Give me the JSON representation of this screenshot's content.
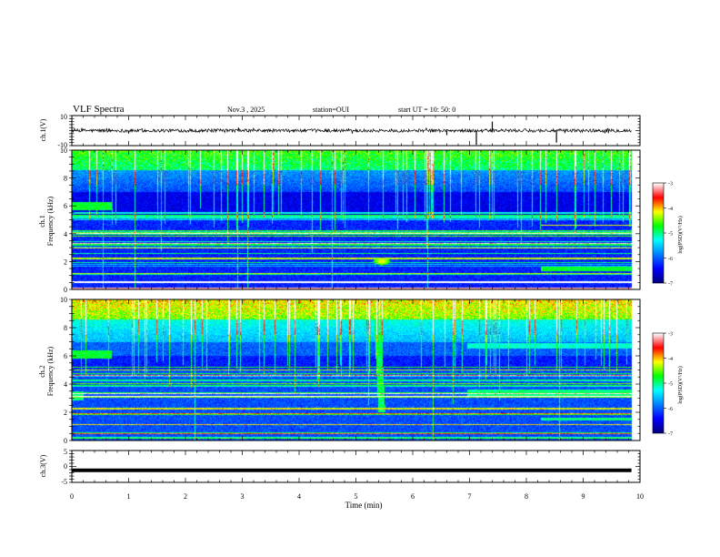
{
  "header": {
    "title": "VLF Spectra",
    "date": "Nov.3 , 2025",
    "station": "station=OUI",
    "start": "start UT = 10: 50: 0"
  },
  "chart_data": [
    {
      "id": "ch1-waveform",
      "type": "line",
      "ylabel": "ch.1(V)",
      "ylim": [
        -10,
        10
      ],
      "yticks": [
        "10",
        "-10"
      ],
      "xlim": [
        0,
        10
      ],
      "baseline": 0,
      "spikes": [
        {
          "t": 7.12,
          "v": -9.5
        },
        {
          "t": 7.4,
          "v": 6
        },
        {
          "t": 8.53,
          "v": -8
        },
        {
          "t": 1.0,
          "v": -2
        },
        {
          "t": 6.6,
          "v": -3
        }
      ]
    },
    {
      "id": "ch1-spectrogram",
      "type": "heatmap",
      "ylabel_top": "ch.1",
      "ylabel": "Frequency (kHz)",
      "ylim": [
        0,
        10
      ],
      "yticks": [
        "0",
        "2",
        "4",
        "6",
        "8",
        "10"
      ],
      "xlim": [
        0,
        10
      ],
      "features": [
        {
          "kind": "patch",
          "t0": 0.0,
          "t1": 0.7,
          "f0": 5.7,
          "f1": 6.3,
          "level": 0.6
        },
        {
          "kind": "blob",
          "t": 5.45,
          "f": 2.0,
          "level": 0.75
        },
        {
          "kind": "band",
          "t0": 8.25,
          "t1": 9.85,
          "f0": 1.3,
          "f1": 1.6,
          "level": 0.6
        },
        {
          "kind": "line",
          "f": 4.6,
          "t0": 8.25,
          "t1": 9.85,
          "level": 0.7
        },
        {
          "kind": "line",
          "f": 0.5,
          "t0": 0.0,
          "t1": 9.85,
          "level": 1.0
        }
      ],
      "colorbar": {
        "label": "log(PSD)(V²/Hz)",
        "ticks": [
          "-3",
          "-4",
          "-5",
          "-6",
          "-7"
        ],
        "range": [
          -7,
          -3
        ]
      }
    },
    {
      "id": "ch2-spectrogram",
      "type": "heatmap",
      "ylabel_top": "ch.2",
      "ylabel": "Frequency (kHz)",
      "ylim": [
        0,
        10
      ],
      "yticks": [
        "0",
        "2",
        "4",
        "6",
        "8",
        "10"
      ],
      "xlim": [
        0,
        10
      ],
      "features": [
        {
          "kind": "patch",
          "t0": 0.0,
          "t1": 0.7,
          "f0": 5.8,
          "f1": 6.4,
          "level": 0.6
        },
        {
          "kind": "patch",
          "t0": 0.0,
          "t1": 0.2,
          "f0": 2.8,
          "f1": 3.5,
          "level": 0.55
        },
        {
          "kind": "whistler",
          "t": 5.45,
          "f0": 2.0,
          "f1": 10.0,
          "level": 0.6
        },
        {
          "kind": "band",
          "t0": 6.95,
          "t1": 9.85,
          "f0": 3.0,
          "f1": 3.6,
          "level": 0.55
        },
        {
          "kind": "band",
          "t0": 6.95,
          "t1": 9.85,
          "f0": 6.5,
          "f1": 6.9,
          "level": 0.5
        },
        {
          "kind": "band",
          "t0": 8.25,
          "t1": 9.85,
          "f0": 1.4,
          "f1": 1.6,
          "level": 0.55
        }
      ],
      "colorbar": {
        "label": "log(PSD)(V²/Hz)",
        "ticks": [
          "-3",
          "-4",
          "-5",
          "-6",
          "-7"
        ],
        "range": [
          -7,
          -3
        ]
      }
    },
    {
      "id": "ch3-waveform",
      "type": "line",
      "ylabel": "ch.3(V)",
      "ylim": [
        -5,
        5
      ],
      "yticks": [
        "5",
        "0",
        "-5"
      ],
      "xlim": [
        0,
        10
      ],
      "baseline": -1.2,
      "spikes": []
    }
  ],
  "xaxis": {
    "label": "Time (min)",
    "ticks": [
      "0",
      "1",
      "2",
      "3",
      "4",
      "5",
      "6",
      "7",
      "8",
      "9",
      "10"
    ]
  },
  "colors": {
    "colormap": [
      "#000080",
      "#0000ff",
      "#0080ff",
      "#00ffff",
      "#00ff00",
      "#ffff00",
      "#ff0000",
      "#ffffff"
    ]
  }
}
